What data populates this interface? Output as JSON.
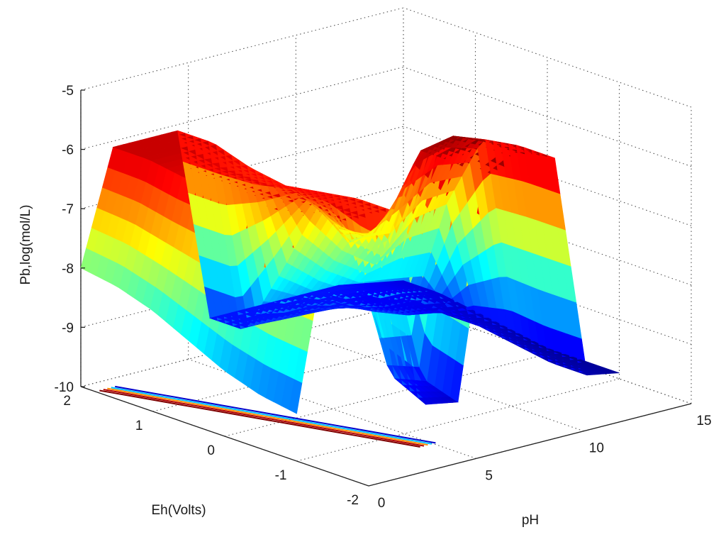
{
  "chart_data": {
    "type": "surface",
    "xlabel": "pH",
    "ylabel": "Eh(Volts)",
    "zlabel": "Pb,log(mol/L)",
    "xlim": [
      0,
      15
    ],
    "ylim": [
      -2,
      2
    ],
    "zlim": [
      -10,
      -5
    ],
    "xticks": [
      "0",
      "5",
      "10",
      "15"
    ],
    "yticks": [
      "-2",
      "-1",
      "0",
      "1",
      "2"
    ],
    "zticks": [
      "-10",
      "-9",
      "-8",
      "-7",
      "-6",
      "-5"
    ],
    "grid": true,
    "colormap": "jet",
    "surface": {
      "pH_levels": [
        0,
        1.5,
        3,
        4.5,
        6,
        7.5,
        9,
        10.5,
        12,
        13.5,
        15
      ],
      "Eh_levels": [
        2,
        1.5,
        1,
        0.5,
        0,
        -0.5,
        -1
      ],
      "log_Pb": [
        [
          -8.0,
          -6.1,
          -6.1,
          -6.1,
          -9.4,
          -9.4,
          -9.4,
          -9.4,
          -9.4,
          -9.5,
          -9.6
        ],
        [
          -8.1,
          -6.1,
          -6.1,
          -6.1,
          -9.4,
          -9.4,
          -9.4,
          -9.4,
          -9.5,
          -9.5,
          -9.6
        ],
        [
          -8.3,
          -6.2,
          -6.2,
          -6.3,
          -8.2,
          -8.6,
          -8.9,
          -9.3,
          -9.5,
          -9.6,
          -9.7
        ],
        [
          -8.6,
          -6.2,
          -6.2,
          -6.4,
          -6.9,
          -7.6,
          -8.0,
          -7.5,
          -7.4,
          -9.6,
          -9.8
        ],
        [
          -8.9,
          -6.2,
          -6.2,
          -6.3,
          -7.4,
          -7.2,
          -6.0,
          -5.9,
          -6.1,
          -9.7,
          -9.9
        ],
        [
          -9.1,
          -6.2,
          -6.2,
          -6.2,
          -9.3,
          -9.5,
          -6.0,
          -5.8,
          -6.0,
          -9.8,
          -9.9
        ],
        [
          -9.2,
          -6.2,
          -6.2,
          -6.2,
          -9.6,
          -9.7,
          -6.1,
          -5.8,
          -6.0,
          -9.8,
          -9.9
        ]
      ]
    }
  }
}
